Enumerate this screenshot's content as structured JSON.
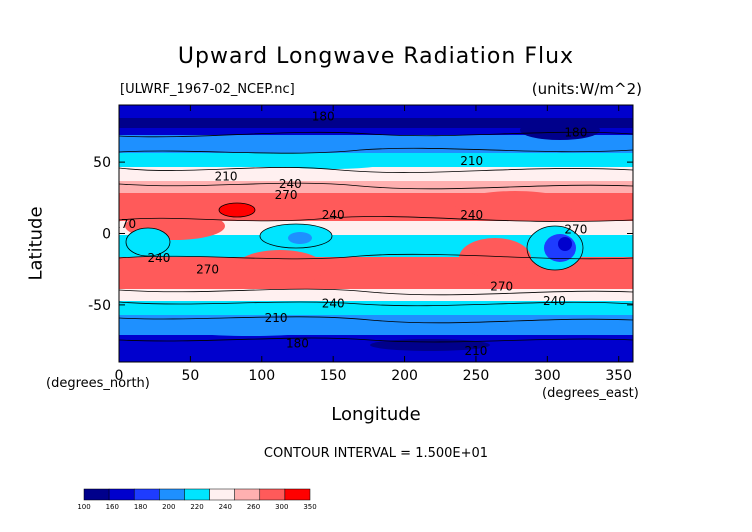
{
  "header": {
    "title": "Upward Longwave Radiation Flux",
    "file": "[ULWRF_1967-02_NCEP.nc]",
    "units": "(units:W/m^2)"
  },
  "axes": {
    "xlabel": "Longitude",
    "ylabel": "Latitude",
    "x_units": "(degrees_north)",
    "x_units_east": "(degrees_east)"
  },
  "footer": {
    "contour_interval": "CONTOUR INTERVAL = 1.500E+01"
  },
  "chart_data": {
    "type": "heatmap",
    "title": "Upward Longwave Radiation Flux",
    "xlabel": "Longitude",
    "ylabel": "Latitude",
    "xlim": [
      0,
      360
    ],
    "ylim": [
      -90,
      90
    ],
    "x_ticks": [
      0,
      50,
      100,
      150,
      200,
      250,
      300,
      350
    ],
    "y_ticks": [
      -50,
      0,
      50
    ],
    "contour_interval": 15,
    "colorbar": {
      "levels": [
        100,
        160,
        180,
        200,
        220,
        240,
        260,
        300,
        350
      ],
      "colors": [
        "#00008b",
        "#0000cd",
        "#1e3cff",
        "#1e90ff",
        "#00e5ff",
        "#fff0f0",
        "#ffb0b0",
        "#ff5a5a",
        "#ff0000"
      ]
    },
    "contour_labels": [
      {
        "x": 143,
        "y": 79,
        "text": "180"
      },
      {
        "x": 320,
        "y": 68,
        "text": "180"
      },
      {
        "x": 247,
        "y": 48,
        "text": "210"
      },
      {
        "x": 75,
        "y": 37,
        "text": "210"
      },
      {
        "x": 120,
        "y": 32,
        "text": "240"
      },
      {
        "x": 117,
        "y": 24,
        "text": "270"
      },
      {
        "x": 150,
        "y": 10,
        "text": "240"
      },
      {
        "x": 4,
        "y": 4,
        "text": "270"
      },
      {
        "x": 247,
        "y": 10,
        "text": "240"
      },
      {
        "x": 320,
        "y": 0,
        "text": "270"
      },
      {
        "x": 28,
        "y": -20,
        "text": "240"
      },
      {
        "x": 62,
        "y": -28,
        "text": "270"
      },
      {
        "x": 268,
        "y": -40,
        "text": "270"
      },
      {
        "x": 305,
        "y": -50,
        "text": "240"
      },
      {
        "x": 150,
        "y": -52,
        "text": "240"
      },
      {
        "x": 110,
        "y": -62,
        "text": "210"
      },
      {
        "x": 125,
        "y": -80,
        "text": "180"
      },
      {
        "x": 250,
        "y": -85,
        "text": "210"
      }
    ]
  }
}
